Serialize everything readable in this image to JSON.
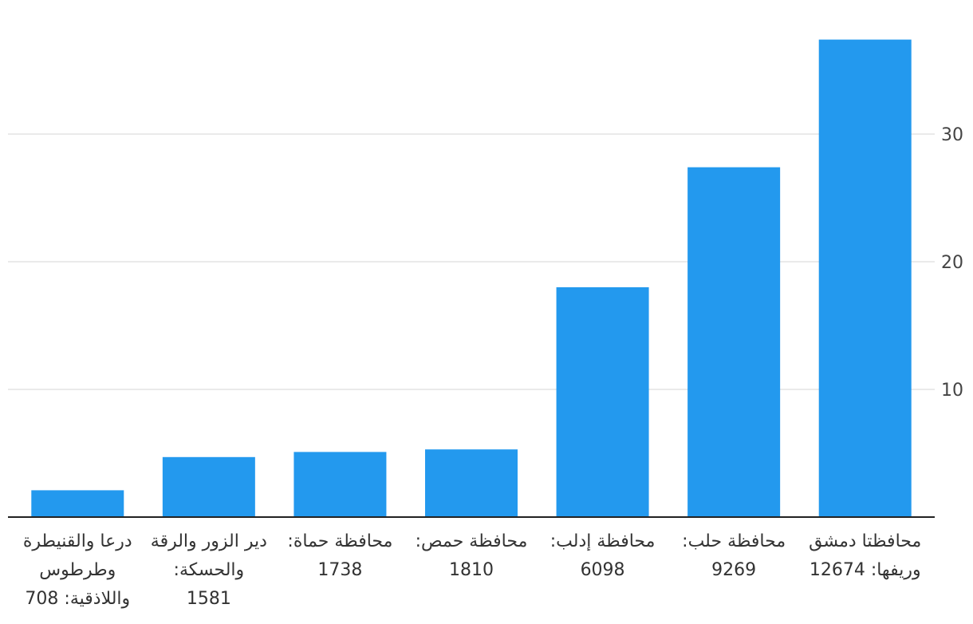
{
  "chart_data": {
    "type": "bar",
    "categories": [
      [
        "محافظتا دمشق",
        "وريفها: 12674"
      ],
      [
        "محافظة حلب:",
        "9269"
      ],
      [
        "محافظة إدلب:",
        "6098"
      ],
      [
        "محافظة حمص:",
        "1810"
      ],
      [
        "محافظة حماة:",
        "1738"
      ],
      [
        "دير الزور والرقة",
        "والحسكة:",
        "1581"
      ],
      [
        "درعا والقنيطرة",
        "وطرطوس",
        "واللاذقية: 708"
      ]
    ],
    "values": [
      37.4,
      27.4,
      18.0,
      5.3,
      5.1,
      4.7,
      2.1
    ],
    "yticks": [
      10,
      20,
      30
    ],
    "ylim": [
      0,
      40
    ],
    "grid": true,
    "axis_side": "right",
    "bar_color": "#2399ee"
  }
}
